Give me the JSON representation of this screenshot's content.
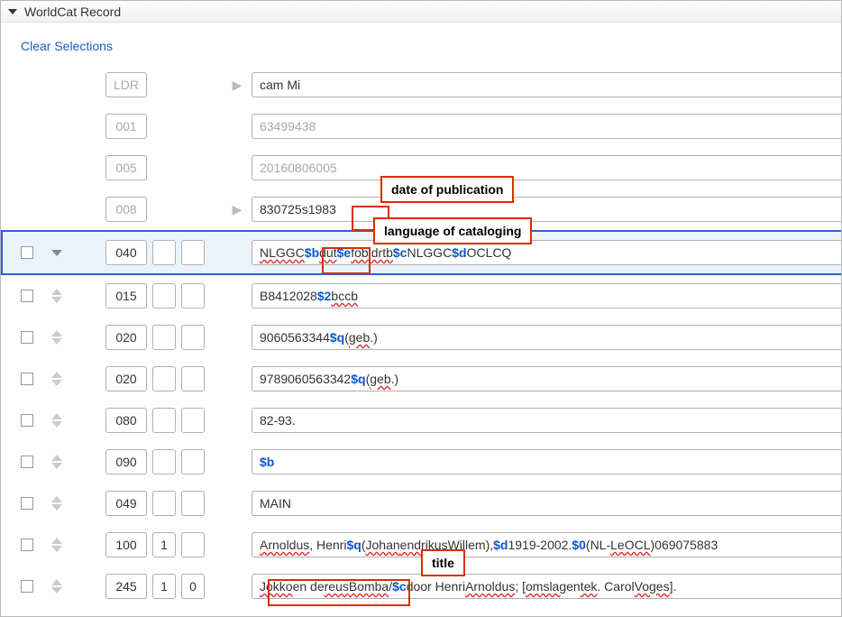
{
  "panel": {
    "title": "WorldCat Record"
  },
  "clear_link": "Clear Selections",
  "fixed_rows": [
    {
      "tag": "LDR",
      "expander": true,
      "value": "cam  Mi",
      "disabled": false
    },
    {
      "tag": "001",
      "expander": false,
      "value": "63499438",
      "disabled": true
    },
    {
      "tag": "005",
      "expander": false,
      "value": "20160806005",
      "disabled": true
    },
    {
      "tag": "008",
      "expander": true,
      "value_pre": "830725s",
      "value_year": "1983",
      "disabled": false
    }
  ],
  "var_rows": [
    {
      "tag": "040",
      "ind1": "",
      "ind2": "",
      "highlighted": true,
      "single_arrow": true,
      "segments": [
        {
          "t": "NLGGC ",
          "red": true
        },
        {
          "sub": "$b"
        },
        {
          "t": " "
        },
        {
          "t": "dut",
          "red": true
        },
        {
          "t": " "
        },
        {
          "sub": "$e"
        },
        {
          "t": " "
        },
        {
          "t": "fobidrtb",
          "red": true
        },
        {
          "t": " "
        },
        {
          "sub": "$c"
        },
        {
          "t": " NLGGC "
        },
        {
          "sub": "$d"
        },
        {
          "t": " OCLCQ"
        }
      ]
    },
    {
      "tag": "015",
      "ind1": "",
      "ind2": "",
      "segments": [
        {
          "t": "B8412028 "
        },
        {
          "sub": "$2"
        },
        {
          "t": " "
        },
        {
          "t": "bccb",
          "red": true
        }
      ]
    },
    {
      "tag": "020",
      "ind1": "",
      "ind2": "",
      "segments": [
        {
          "t": "9060563344 "
        },
        {
          "sub": "$q"
        },
        {
          "t": " ("
        },
        {
          "t": "geb",
          "red": true
        },
        {
          "t": ".)"
        }
      ]
    },
    {
      "tag": "020",
      "ind1": "",
      "ind2": "",
      "segments": [
        {
          "t": "9789060563342 "
        },
        {
          "sub": "$q"
        },
        {
          "t": " ("
        },
        {
          "t": "geb",
          "red": true
        },
        {
          "t": ".)"
        }
      ]
    },
    {
      "tag": "080",
      "ind1": "",
      "ind2": "",
      "segments": [
        {
          "t": "82-93."
        }
      ]
    },
    {
      "tag": "090",
      "ind1": "",
      "ind2": "",
      "segments": [
        {
          "t": " "
        },
        {
          "sub": "$b"
        }
      ]
    },
    {
      "tag": "049",
      "ind1": "",
      "ind2": "",
      "segments": [
        {
          "t": "MAIN"
        }
      ]
    },
    {
      "tag": "100",
      "ind1": "1",
      "ind2": "",
      "segments": [
        {
          "t": "Arnoldus",
          "red": true
        },
        {
          "t": ", Henri "
        },
        {
          "sub": "$q"
        },
        {
          "t": " ("
        },
        {
          "t": "Johan",
          "red": true
        },
        {
          "t": "     "
        },
        {
          "t": "endrikus",
          "red": true
        },
        {
          "t": " Willem), "
        },
        {
          "sub": "$d"
        },
        {
          "t": " 1919-2002. "
        },
        {
          "sub": "$0"
        },
        {
          "t": " (NL-"
        },
        {
          "t": "LeOCL",
          "red": true
        },
        {
          "t": ")069075883"
        }
      ]
    },
    {
      "tag": "245",
      "ind1": "1",
      "ind2": "0",
      "segments": [
        {
          "t": "Jokko",
          "red": true
        },
        {
          "t": " en de "
        },
        {
          "t": "reus",
          "red": true
        },
        {
          "t": " "
        },
        {
          "t": "Bomba",
          "red": true
        },
        {
          "t": " / "
        },
        {
          "sub": "$c"
        },
        {
          "t": " door Henri "
        },
        {
          "t": "Arnoldus",
          "red": true
        },
        {
          "t": " ; ["
        },
        {
          "t": "omslag",
          "red": true
        },
        {
          "t": " en "
        },
        {
          "t": "tek",
          "red": true
        },
        {
          "t": ". Carol "
        },
        {
          "t": "Voges",
          "red": true
        },
        {
          "t": "]."
        }
      ]
    }
  ],
  "callouts": {
    "date": "date of publication",
    "lang": "language of cataloging",
    "title": "title"
  }
}
